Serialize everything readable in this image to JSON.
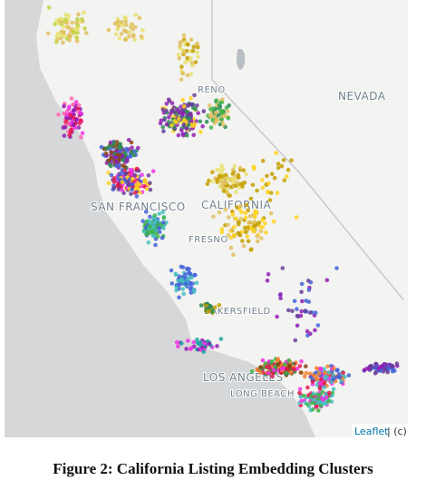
{
  "map": {
    "labels": [
      "NEVADA",
      "RENO",
      "SAN FRANCISCO",
      "CALIFORNIA",
      "FRESNO",
      "BAKERSFIELD",
      "LOS ANGELES",
      "LONG BEACH"
    ],
    "attribution": {
      "link": "Leaflet",
      "text": "| (c)"
    }
  },
  "caption": "Figure 2: California Listing Embedding Clusters"
}
